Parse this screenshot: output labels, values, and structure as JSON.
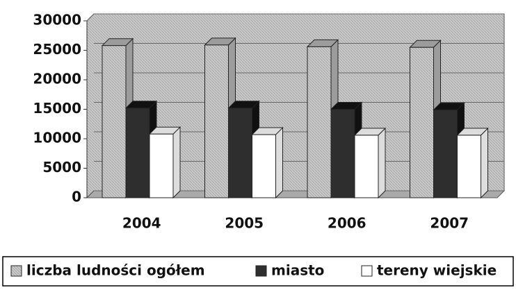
{
  "chart_data": {
    "type": "bar3d",
    "categories": [
      "2004",
      "2005",
      "2006",
      "2007"
    ],
    "series": [
      {
        "name": "liczba ludności ogółem",
        "color": "#c4c4c4",
        "values": [
          25800,
          25900,
          25600,
          25500
        ]
      },
      {
        "name": "miasto",
        "color": "#2e2e2e",
        "values": [
          15200,
          15200,
          15000,
          14900
        ]
      },
      {
        "name": "tereny wiejskie",
        "color": "#ffffff",
        "values": [
          10800,
          10700,
          10600,
          10600
        ]
      }
    ],
    "ylim": [
      0,
      30000
    ],
    "yticks": [
      0,
      5000,
      10000,
      15000,
      20000,
      25000,
      30000
    ],
    "grid": true,
    "legend": "bottom"
  }
}
